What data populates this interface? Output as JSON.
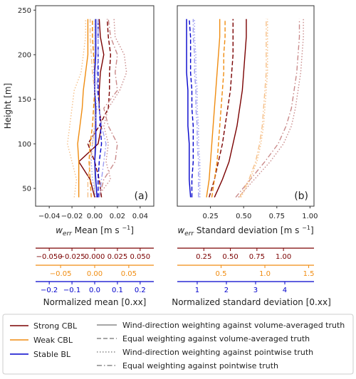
{
  "chart_data": [
    {
      "type": "line",
      "panel_label": "(a)",
      "xlabel": "w_err Mean [m s^-1]",
      "ylabel": "Height [m]",
      "xlim": [
        -0.052,
        0.052
      ],
      "ylim": [
        30,
        255
      ],
      "xticks": [
        -0.04,
        -0.02,
        0.0,
        0.02,
        0.04
      ],
      "xtick_labels": [
        "−0.04",
        "−0.02",
        "0.00",
        "0.02",
        "0.04"
      ],
      "yticks": [
        50,
        100,
        150,
        200,
        250
      ],
      "ytick_labels": [
        "50",
        "100",
        "150",
        "200",
        "250"
      ],
      "reference_line_x": 0,
      "heights": [
        40,
        60,
        80,
        100,
        120,
        140,
        160,
        180,
        200,
        220,
        240
      ],
      "series": [
        {
          "name": "Strong CBL",
          "weighting": "Wind-direction weighting against volume-averaged truth",
          "color": "#7a0000",
          "dash": "solid",
          "values": [
            0.0,
            -0.004,
            -0.014,
            0.003,
            0.006,
            0.004,
            0.004,
            0.005,
            0.008,
            0.005,
            0.004
          ]
        },
        {
          "name": "Strong CBL",
          "weighting": "Equal weighting against volume-averaged truth",
          "color": "#7a0000",
          "dash": "dashed",
          "values": [
            0.006,
            0.004,
            0.0,
            -0.006,
            0.004,
            0.012,
            0.013,
            0.013,
            0.014,
            0.012,
            0.011
          ]
        },
        {
          "name": "Strong CBL",
          "weighting": "Wind-direction weighting against pointwise truth",
          "color": "#c98a8a",
          "dash": "dotted",
          "values": [
            0.002,
            0.014,
            0.01,
            0.012,
            0.008,
            0.012,
            0.022,
            0.028,
            0.026,
            0.018,
            0.017
          ]
        },
        {
          "name": "Strong CBL",
          "weighting": "Equal weighting against pointwise truth",
          "color": "#c98a8a",
          "dash": "dashdot",
          "values": [
            0.004,
            0.008,
            0.018,
            0.02,
            0.012,
            0.008,
            0.02,
            0.018,
            0.02,
            0.014,
            0.012
          ]
        },
        {
          "name": "Weak CBL",
          "weighting": "Wind-direction weighting against volume-averaged truth",
          "color": "#f08c10",
          "dash": "solid",
          "values": [
            -0.014,
            -0.014,
            -0.014,
            -0.015,
            -0.013,
            -0.011,
            -0.01,
            -0.008,
            -0.006,
            -0.006,
            -0.006
          ]
        },
        {
          "name": "Weak CBL",
          "weighting": "Equal weighting against volume-averaged truth",
          "color": "#f08c10",
          "dash": "dashed",
          "values": [
            -0.003,
            -0.004,
            -0.005,
            -0.004,
            -0.002,
            -0.001,
            0.0,
            0.0,
            -0.001,
            -0.002,
            -0.002
          ]
        },
        {
          "name": "Weak CBL",
          "weighting": "Wind-direction weighting against pointwise truth",
          "color": "#f6c089",
          "dash": "dotted",
          "values": [
            -0.018,
            -0.016,
            -0.02,
            -0.024,
            -0.022,
            -0.02,
            -0.018,
            -0.012,
            -0.01,
            -0.008,
            -0.008
          ]
        },
        {
          "name": "Weak CBL",
          "weighting": "Equal weighting against pointwise truth",
          "color": "#f6c089",
          "dash": "dashdot",
          "values": [
            -0.006,
            -0.006,
            -0.004,
            -0.002,
            0.0,
            0.001,
            0.0,
            -0.002,
            -0.003,
            -0.004,
            -0.004
          ]
        },
        {
          "name": "Stable BL",
          "weighting": "Wind-direction weighting against volume-averaged truth",
          "color": "#0000cc",
          "dash": "solid",
          "values": [
            0.002,
            0.001,
            0.0,
            0.001,
            0.001,
            0.001,
            0.0,
            0.0,
            0.001,
            0.001,
            0.001
          ]
        },
        {
          "name": "Stable BL",
          "weighting": "Equal weighting against volume-averaged truth",
          "color": "#0000cc",
          "dash": "dashed",
          "values": [
            0.003,
            0.003,
            0.004,
            0.006,
            0.005,
            0.004,
            0.003,
            0.003,
            0.003,
            0.003,
            0.003
          ]
        },
        {
          "name": "Stable BL",
          "weighting": "Wind-direction weighting against pointwise truth",
          "color": "#9d9df0",
          "dash": "dotted",
          "values": [
            0.001,
            -0.002,
            -0.003,
            -0.002,
            0.0,
            0.002,
            0.0,
            -0.001,
            0.0,
            0.0,
            0.0
          ]
        },
        {
          "name": "Stable BL",
          "weighting": "Equal weighting against pointwise truth",
          "color": "#9d9df0",
          "dash": "dashdot",
          "values": [
            0.004,
            0.006,
            0.008,
            0.01,
            0.006,
            0.004,
            0.002,
            0.002,
            0.003,
            0.003,
            0.003
          ]
        }
      ],
      "secondary_axes_title": "Normalized mean [0.xx]",
      "secondary_axes": [
        {
          "for": "Strong CBL",
          "color": "#7a0000",
          "ticks": [
            -0.05,
            -0.025,
            0.0,
            0.025,
            0.05
          ],
          "labels": [
            "−0.050",
            "−0.025",
            "0.000",
            "0.025",
            "0.050"
          ],
          "positions_m_s": [
            -0.04,
            -0.02,
            0.0,
            0.02,
            0.04
          ]
        },
        {
          "for": "Weak CBL",
          "color": "#f08c10",
          "ticks": [
            -0.05,
            0.0,
            0.05
          ],
          "labels": [
            "−0.05",
            "0.00",
            "0.05"
          ],
          "positions_m_s": [
            -0.03,
            0.0,
            0.03
          ]
        },
        {
          "for": "Stable BL",
          "color": "#0000cc",
          "ticks": [
            -0.2,
            -0.1,
            0.0,
            0.1,
            0.2
          ],
          "labels": [
            "−0.2",
            "−0.1",
            "0.0",
            "0.1",
            "0.2"
          ],
          "positions_m_s": [
            -0.04,
            -0.02,
            0.0,
            0.02,
            0.04
          ]
        }
      ]
    },
    {
      "type": "line",
      "panel_label": "(b)",
      "xlabel": "w_err Standard deviation [m s^-1]",
      "ylabel": "",
      "xlim": [
        0.0,
        1.03
      ],
      "ylim": [
        30,
        255
      ],
      "xticks": [
        0.25,
        0.5,
        0.75,
        1.0
      ],
      "xtick_labels": [
        "0.25",
        "0.50",
        "0.75",
        "1.00"
      ],
      "heights": [
        40,
        60,
        80,
        100,
        120,
        140,
        160,
        180,
        200,
        220,
        240
      ],
      "series": [
        {
          "name": "Strong CBL",
          "weighting": "Wind-direction weighting against volume-averaged truth",
          "color": "#7a0000",
          "dash": "solid",
          "values": [
            0.28,
            0.34,
            0.39,
            0.42,
            0.45,
            0.47,
            0.49,
            0.5,
            0.51,
            0.52,
            0.52
          ]
        },
        {
          "name": "Strong CBL",
          "weighting": "Equal weighting against volume-averaged truth",
          "color": "#7a0000",
          "dash": "dashed",
          "values": [
            0.24,
            0.28,
            0.31,
            0.34,
            0.36,
            0.38,
            0.4,
            0.41,
            0.42,
            0.42,
            0.42
          ]
        },
        {
          "name": "Strong CBL",
          "weighting": "Wind-direction weighting against pointwise truth",
          "color": "#c98a8a",
          "dash": "dotted",
          "values": [
            0.46,
            0.58,
            0.7,
            0.8,
            0.86,
            0.89,
            0.91,
            0.93,
            0.94,
            0.95,
            0.95
          ]
        },
        {
          "name": "Strong CBL",
          "weighting": "Equal weighting against pointwise truth",
          "color": "#c98a8a",
          "dash": "dashdot",
          "values": [
            0.44,
            0.55,
            0.66,
            0.76,
            0.82,
            0.86,
            0.88,
            0.9,
            0.91,
            0.92,
            0.92
          ]
        },
        {
          "name": "Weak CBL",
          "weighting": "Wind-direction weighting against volume-averaged truth",
          "color": "#f08c10",
          "dash": "solid",
          "values": [
            0.22,
            0.24,
            0.25,
            0.26,
            0.27,
            0.28,
            0.29,
            0.3,
            0.31,
            0.32,
            0.32
          ]
        },
        {
          "name": "Weak CBL",
          "weighting": "Equal weighting against volume-averaged truth",
          "color": "#f08c10",
          "dash": "dashed",
          "values": [
            0.26,
            0.28,
            0.3,
            0.31,
            0.32,
            0.33,
            0.34,
            0.35,
            0.35,
            0.36,
            0.36
          ]
        },
        {
          "name": "Weak CBL",
          "weighting": "Wind-direction weighting against pointwise truth",
          "color": "#f6c089",
          "dash": "dotted",
          "values": [
            0.48,
            0.55,
            0.6,
            0.63,
            0.65,
            0.66,
            0.67,
            0.68,
            0.68,
            0.68,
            0.68
          ]
        },
        {
          "name": "Weak CBL",
          "weighting": "Equal weighting against pointwise truth",
          "color": "#f6c089",
          "dash": "dashdot",
          "values": [
            0.47,
            0.54,
            0.59,
            0.62,
            0.64,
            0.65,
            0.66,
            0.67,
            0.67,
            0.67,
            0.67
          ]
        },
        {
          "name": "Stable BL",
          "weighting": "Wind-direction weighting against volume-averaged truth",
          "color": "#0000cc",
          "dash": "solid",
          "values": [
            0.1,
            0.09,
            0.09,
            0.09,
            0.08,
            0.08,
            0.08,
            0.07,
            0.07,
            0.07,
            0.07
          ]
        },
        {
          "name": "Stable BL",
          "weighting": "Equal weighting against volume-averaged truth",
          "color": "#0000cc",
          "dash": "dashed",
          "values": [
            0.11,
            0.11,
            0.12,
            0.12,
            0.12,
            0.11,
            0.11,
            0.1,
            0.1,
            0.1,
            0.09
          ]
        },
        {
          "name": "Stable BL",
          "weighting": "Wind-direction weighting against pointwise truth",
          "color": "#9d9df0",
          "dash": "dotted",
          "values": [
            0.17,
            0.17,
            0.17,
            0.16,
            0.16,
            0.15,
            0.15,
            0.14,
            0.14,
            0.13,
            0.13
          ]
        },
        {
          "name": "Stable BL",
          "weighting": "Equal weighting against pointwise truth",
          "color": "#9d9df0",
          "dash": "dashdot",
          "values": [
            0.16,
            0.16,
            0.16,
            0.15,
            0.15,
            0.14,
            0.14,
            0.13,
            0.13,
            0.12,
            0.12
          ]
        }
      ],
      "secondary_axes_title": "Normalized standard deviation [0.xx]",
      "secondary_axes": [
        {
          "for": "Strong CBL",
          "color": "#7a0000",
          "ticks": [
            0.25,
            0.5,
            0.75,
            1.0
          ],
          "labels": [
            "0.25",
            "0.50",
            "0.75",
            "1.00"
          ],
          "positions_m_s": [
            0.2,
            0.4,
            0.6,
            0.8
          ]
        },
        {
          "for": "Weak CBL",
          "color": "#f08c10",
          "ticks": [
            0.5,
            1.0,
            1.5
          ],
          "labels": [
            "0.5",
            "1.0",
            "1.5"
          ],
          "positions_m_s": [
            0.33,
            0.66,
            0.99
          ]
        },
        {
          "for": "Stable BL",
          "color": "#0000cc",
          "ticks": [
            1,
            2,
            3,
            4
          ],
          "labels": [
            "1",
            "2",
            "3",
            "4"
          ],
          "positions_m_s": [
            0.15,
            0.37,
            0.59,
            0.81
          ]
        }
      ]
    }
  ],
  "legend": {
    "placement": "bottom",
    "cases": [
      {
        "label": "Strong CBL",
        "color": "#7a0000"
      },
      {
        "label": "Weak CBL",
        "color": "#f08c10"
      },
      {
        "label": "Stable BL",
        "color": "#0000cc"
      }
    ],
    "weightings": [
      {
        "label": "Wind-direction weighting against volume-averaged truth",
        "dash": "solid"
      },
      {
        "label": "Equal weighting against volume-averaged truth",
        "dash": "dashed"
      },
      {
        "label": "Wind-direction weighting against pointwise truth",
        "dash": "dotted"
      },
      {
        "label": "Equal weighting against pointwise truth",
        "dash": "dashdot"
      }
    ],
    "style_color": "#888888"
  }
}
